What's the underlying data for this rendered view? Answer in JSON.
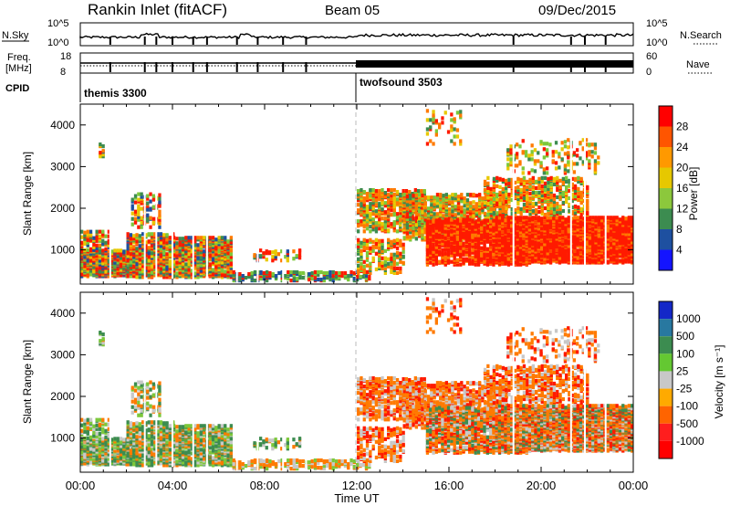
{
  "header": {
    "title": "Rankin Inlet (fitACF)",
    "beam": "Beam 05",
    "date": "09/Dec/2015"
  },
  "top_panels": {
    "nsky_label": "N.Sky",
    "nsky_ticks": [
      "10^5",
      "10^0"
    ],
    "nsearch_label": "N.Search",
    "nsearch_ticks": [
      "10^5",
      "10^0"
    ],
    "freq_label_1": "Freq.",
    "freq_label_2": "[MHz]",
    "freq_ticks": [
      "18",
      "8"
    ],
    "nave_label": "Nave",
    "nave_ticks": [
      "60",
      "0"
    ],
    "cpid_label": "CPID",
    "modes": [
      "themis 3300",
      "twofsound 3503"
    ]
  },
  "chart_data": [
    {
      "type": "heatmap",
      "title": "",
      "xlabel": "",
      "ylabel": "Slant Range [km]",
      "xlim": [
        0,
        24
      ],
      "ylim": [
        180,
        4500
      ],
      "yticks": [
        "1000",
        "2000",
        "3000",
        "4000"
      ],
      "colorbar": {
        "label": "Power [dB]",
        "ticks": [
          "28",
          "24",
          "20",
          "16",
          "12",
          "8",
          "4"
        ],
        "colors": [
          "#ff0000",
          "#ff5500",
          "#ff9900",
          "#e6c800",
          "#8cc83c",
          "#3c8c50",
          "#1e50a0",
          "#1414ff"
        ]
      },
      "grid": false,
      "regions": [
        {
          "t": [
            0.0,
            7.0
          ],
          "r": [
            300,
            1400
          ],
          "level": "mixed"
        },
        {
          "t": [
            12.0,
            24.0
          ],
          "r": [
            500,
            2200
          ],
          "level": "high"
        }
      ]
    },
    {
      "type": "heatmap",
      "title": "",
      "xlabel": "Time UT",
      "ylabel": "Slant Range [km]",
      "xlim": [
        0,
        24
      ],
      "ylim": [
        180,
        4500
      ],
      "xticks": [
        "00:00",
        "04:00",
        "08:00",
        "12:00",
        "16:00",
        "20:00",
        "00:00"
      ],
      "yticks": [
        "1000",
        "2000",
        "3000",
        "4000"
      ],
      "colorbar": {
        "label": "Velocity [m s⁻¹]",
        "ticks": [
          "1000",
          "500",
          "100",
          "25",
          "-25",
          "-100",
          "-500",
          "-1000"
        ],
        "colors": [
          "#1428c8",
          "#2878a0",
          "#3c8c50",
          "#64c832",
          "#c8c8c8",
          "#ffaa00",
          "#ff6400",
          "#ff1e1e",
          "#ff0000"
        ]
      },
      "grid": false
    }
  ],
  "time_axis_label": "Time UT",
  "colors": {
    "red": "#ff1a00",
    "orange": "#ff7a00",
    "yellow": "#e8c800",
    "lightgreen": "#7cc83a",
    "green": "#3c8c50",
    "blue": "#1e50a0",
    "grey": "#c8c8c8"
  }
}
